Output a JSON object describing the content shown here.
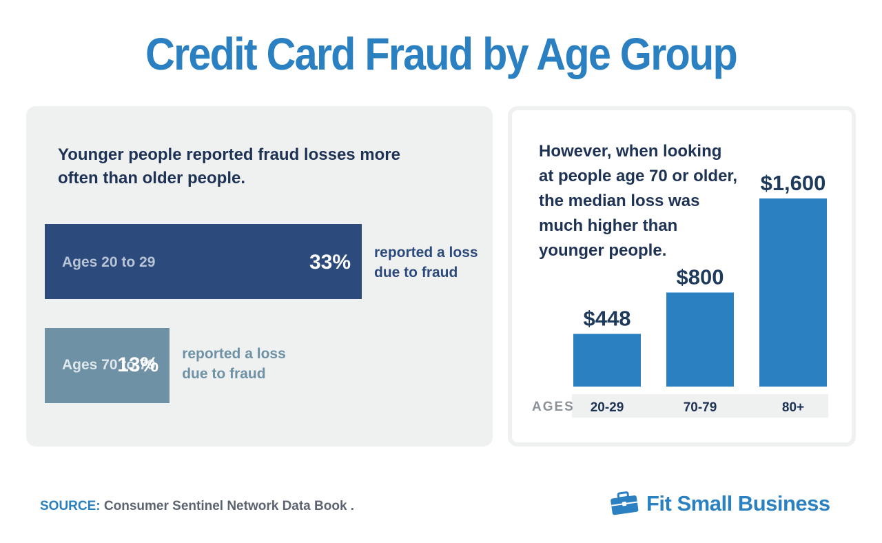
{
  "title": "Credit Card Fraud by Age Group",
  "left_panel": {
    "heading": "Younger people reported fraud losses more often than older people.",
    "bars": [
      {
        "label": "Ages 20 to 29",
        "value_text": "33%",
        "note": "reported a loss due to fraud"
      },
      {
        "label": "Ages 70 to 79",
        "value_text": "13%",
        "note": "reported a loss due to fraud"
      }
    ]
  },
  "right_panel": {
    "heading": "However, when looking at people age 70 or older, the median loss was much higher than younger people.",
    "axis_label": "AGES"
  },
  "chart_data": [
    {
      "type": "bar",
      "orientation": "horizontal",
      "categories": [
        "Ages 20 to 29",
        "Ages 70 to 79"
      ],
      "values": [
        33,
        13
      ],
      "unit": "%",
      "title": "Younger people reported fraud losses more often than older people.",
      "colors": [
        "#2c4b7c",
        "#6e91a5"
      ]
    },
    {
      "type": "bar",
      "orientation": "vertical",
      "categories": [
        "20-29",
        "70-79",
        "80+"
      ],
      "values": [
        448,
        800,
        1600
      ],
      "value_labels": [
        "$448",
        "$800",
        "$1,600"
      ],
      "xlabel": "AGES",
      "title": "However, when looking at people age 70 or older, the median loss was much higher than younger people.",
      "colors": [
        "#2a80c0"
      ],
      "label_color": "#1e3a5c"
    }
  ],
  "footer": {
    "source_key": "SOURCE:",
    "source_text": " Consumer Sentinel Network Data Book .",
    "brand": "Fit Small Business",
    "brand_icon": "briefcase-icon"
  },
  "colors": {
    "accent": "#2a80c0",
    "dark_navy": "#1e3254",
    "panel_bg": "#eff1f1"
  }
}
